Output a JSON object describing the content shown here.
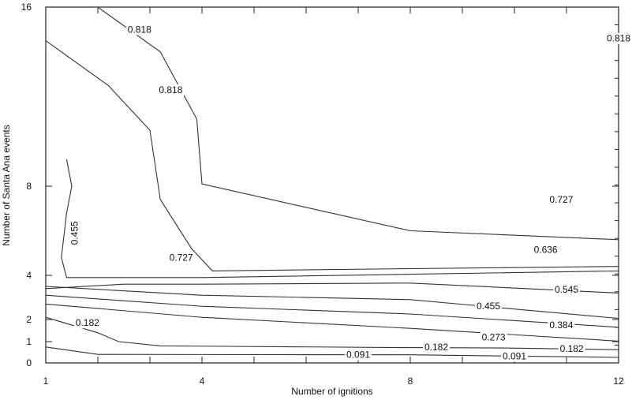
{
  "chart_data": {
    "type": "contour",
    "xlabel": "Number of ignitions",
    "ylabel": "Number of Santa Ana events",
    "x_ticks": [
      1,
      4,
      8,
      12
    ],
    "y_ticks": [
      0,
      1,
      2,
      4,
      8,
      16
    ],
    "xlim": [
      1,
      12
    ],
    "ylim": [
      0,
      16
    ],
    "contours": [
      {
        "level": "0.091",
        "points": [
          [
            1,
            0.75
          ],
          [
            2,
            0.4
          ],
          [
            8,
            0.38
          ],
          [
            12,
            0.26
          ]
        ],
        "labels": [
          [
            7,
            0.38
          ],
          [
            10,
            0.32
          ]
        ]
      },
      {
        "level": "0.182",
        "points": [
          [
            1,
            2.1
          ],
          [
            2,
            1.4
          ],
          [
            2.4,
            1
          ],
          [
            3.2,
            0.8
          ],
          [
            8,
            0.72
          ],
          [
            9.8,
            0.7
          ],
          [
            12,
            0.62
          ]
        ],
        "labels": [
          [
            1.8,
            1.85
          ],
          [
            8.5,
            0.75
          ],
          [
            11.1,
            0.66
          ]
        ]
      },
      {
        "level": "0.273",
        "points": [
          [
            1,
            2.7
          ],
          [
            4,
            2.1
          ],
          [
            8,
            1.6
          ],
          [
            12,
            1.02
          ]
        ],
        "labels": [
          [
            9.6,
            1.2
          ]
        ]
      },
      {
        "level": "0.384",
        "points": [
          [
            1,
            3.1
          ],
          [
            4,
            2.6
          ],
          [
            8,
            2.25
          ],
          [
            12,
            1.65
          ]
        ],
        "labels": [
          [
            10.9,
            1.75
          ]
        ]
      },
      {
        "level": "0.455",
        "points": [
          [
            1,
            3.5
          ],
          [
            4,
            3.1
          ],
          [
            8,
            2.9
          ],
          [
            12,
            2.05
          ]
        ],
        "labels": [
          [
            9.5,
            2.6
          ]
        ],
        "inline_label": [
          1.55,
          5.9
        ]
      },
      {
        "level": "0.545",
        "points": [
          [
            1,
            3.4
          ],
          [
            2.5,
            3.6
          ],
          [
            4,
            3.6
          ],
          [
            8,
            3.65
          ],
          [
            12,
            3.2
          ]
        ],
        "labels": [
          [
            11,
            3.35
          ]
        ]
      },
      {
        "level": "0.636",
        "points": [
          [
            1.4,
            9.2
          ],
          [
            1.5,
            8
          ],
          [
            1.4,
            6.8
          ],
          [
            1.3,
            4.8
          ],
          [
            1.4,
            3.9
          ],
          [
            4,
            3.9
          ],
          [
            8,
            4.05
          ],
          [
            12,
            4.2
          ]
        ],
        "labels": [
          [
            10.6,
            5.15
          ]
        ]
      },
      {
        "level": "0.727",
        "points": [
          [
            1,
            14.5
          ],
          [
            2.2,
            12.5
          ],
          [
            3,
            10.5
          ],
          [
            3.2,
            7.4
          ],
          [
            3.8,
            5.2
          ],
          [
            4.2,
            4.2
          ],
          [
            8,
            4.3
          ],
          [
            12,
            4.4
          ]
        ],
        "labels": [
          [
            3.6,
            4.8
          ],
          [
            10.9,
            7.4
          ]
        ]
      },
      {
        "level": "0.818",
        "points": [
          [
            2,
            16
          ],
          [
            3.2,
            14
          ],
          [
            3.9,
            11
          ],
          [
            4,
            8.1
          ],
          [
            8,
            6
          ],
          [
            12,
            5.6
          ]
        ],
        "labels": [
          [
            2.8,
            15
          ],
          [
            3.4,
            12.3
          ],
          [
            12,
            14.6
          ]
        ]
      }
    ]
  }
}
